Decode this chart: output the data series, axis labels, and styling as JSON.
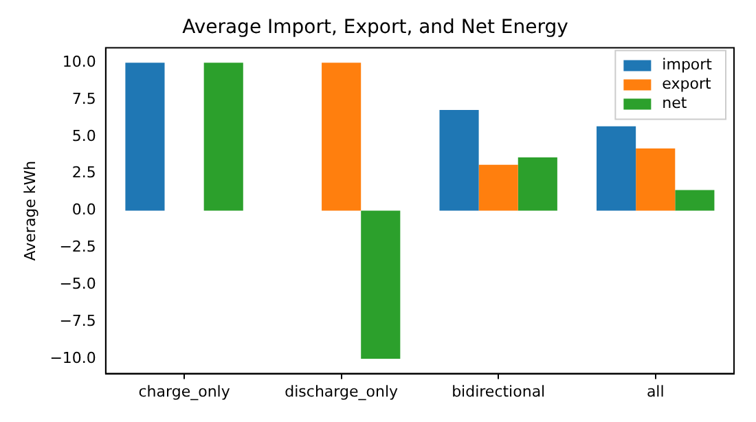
{
  "chart_data": {
    "type": "bar",
    "title": "Average Import, Export, and Net Energy",
    "ylabel": "Average kWh",
    "categories": [
      "charge_only",
      "discharge_only",
      "bidirectional",
      "all"
    ],
    "series": [
      {
        "name": "import",
        "color": "#1f77b4",
        "values": [
          10.0,
          0,
          6.8,
          5.7
        ]
      },
      {
        "name": "export",
        "color": "#ff7f0e",
        "values": [
          0,
          10.0,
          3.1,
          4.2
        ]
      },
      {
        "name": "net",
        "color": "#2ca02c",
        "values": [
          10.0,
          -10.0,
          3.6,
          1.4
        ]
      }
    ],
    "ylim": [
      -11,
      11
    ],
    "yticks": [
      {
        "value": -10,
        "label": "−10.0"
      },
      {
        "value": -7.5,
        "label": "−7.5"
      },
      {
        "value": -5,
        "label": "−5.0"
      },
      {
        "value": -2.5,
        "label": "−2.5"
      },
      {
        "value": 0,
        "label": "0.0"
      },
      {
        "value": 2.5,
        "label": "2.5"
      },
      {
        "value": 5,
        "label": "5.0"
      },
      {
        "value": 7.5,
        "label": "7.5"
      },
      {
        "value": 10,
        "label": "10.0"
      }
    ],
    "grid": false,
    "legend": "top right"
  }
}
